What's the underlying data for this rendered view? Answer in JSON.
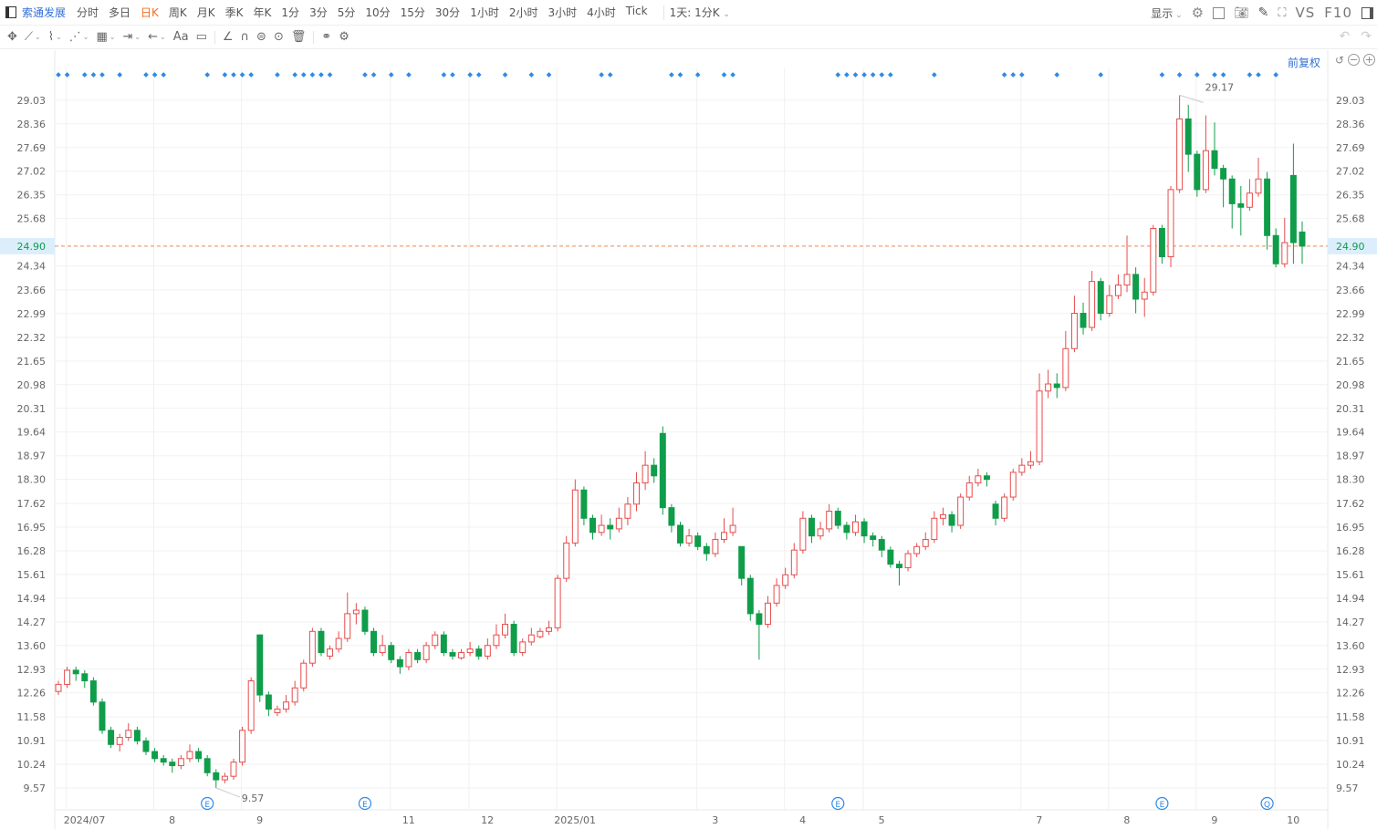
{
  "toolbar": {
    "stock_name": "索通发展",
    "periods": [
      "分时",
      "多日",
      "日K",
      "周K",
      "月K",
      "季K",
      "年K",
      "1分",
      "3分",
      "5分",
      "10分",
      "15分",
      "30分",
      "1小时",
      "2小时",
      "3小时",
      "4小时",
      "Tick"
    ],
    "active_period": "日K",
    "range_select": "1天: 1分K",
    "display_label": "显示",
    "vs_label": "VS",
    "f10_label": "F10",
    "drawing_tools": [
      "move-icon",
      "line-icon",
      "polyline-icon",
      "wave-icon",
      "fib-icon",
      "measure-icon",
      "arrow-icon",
      "text-icon",
      "comment-icon",
      "angle-icon",
      "magnet-icon",
      "eye-icon",
      "target-icon",
      "trash-icon",
      "link-icon",
      "settings-icon"
    ],
    "text_tool_label": "Aa"
  },
  "adjust_label": "前复权",
  "colors": {
    "up": "#e74c4c",
    "down": "#0f9d4a",
    "accent": "#2f6fd6",
    "current_line": "#f0884c",
    "marker": "#2f8ae6"
  },
  "chart_data": {
    "type": "candlestick",
    "ohlc_order": [
      "open",
      "high",
      "low",
      "close"
    ],
    "candles": [
      [
        12.3,
        12.6,
        12.2,
        12.5
      ],
      [
        12.5,
        13.0,
        12.4,
        12.9
      ],
      [
        12.9,
        13.0,
        12.6,
        12.8
      ],
      [
        12.8,
        12.9,
        12.4,
        12.6
      ],
      [
        12.6,
        12.7,
        11.9,
        12.0
      ],
      [
        12.0,
        12.1,
        11.1,
        11.2
      ],
      [
        11.2,
        11.3,
        10.7,
        10.8
      ],
      [
        10.8,
        11.1,
        10.6,
        11.0
      ],
      [
        11.0,
        11.4,
        10.9,
        11.2
      ],
      [
        11.2,
        11.3,
        10.8,
        10.9
      ],
      [
        10.9,
        11.0,
        10.5,
        10.6
      ],
      [
        10.6,
        10.7,
        10.3,
        10.4
      ],
      [
        10.4,
        10.5,
        10.2,
        10.3
      ],
      [
        10.3,
        10.4,
        10.0,
        10.2
      ],
      [
        10.2,
        10.5,
        10.1,
        10.4
      ],
      [
        10.4,
        10.8,
        10.3,
        10.6
      ],
      [
        10.6,
        10.7,
        10.3,
        10.4
      ],
      [
        10.4,
        10.5,
        9.9,
        10.0
      ],
      [
        10.0,
        10.1,
        9.57,
        9.8
      ],
      [
        9.8,
        10.0,
        9.7,
        9.9
      ],
      [
        9.9,
        10.4,
        9.8,
        10.3
      ],
      [
        10.3,
        11.3,
        10.2,
        11.2
      ],
      [
        11.2,
        12.7,
        11.1,
        12.6
      ],
      [
        13.9,
        13.9,
        12.0,
        12.2
      ],
      [
        12.2,
        12.3,
        11.6,
        11.8
      ],
      [
        11.7,
        11.9,
        11.6,
        11.8
      ],
      [
        11.8,
        12.2,
        11.7,
        12.0
      ],
      [
        12.0,
        12.6,
        11.9,
        12.4
      ],
      [
        12.4,
        13.2,
        12.3,
        13.1
      ],
      [
        13.1,
        14.1,
        13.0,
        14.0
      ],
      [
        14.0,
        14.1,
        13.3,
        13.4
      ],
      [
        13.3,
        13.6,
        13.2,
        13.5
      ],
      [
        13.5,
        14.0,
        13.4,
        13.8
      ],
      [
        13.8,
        15.1,
        13.7,
        14.5
      ],
      [
        14.5,
        14.8,
        14.2,
        14.6
      ],
      [
        14.6,
        14.7,
        13.9,
        14.0
      ],
      [
        14.0,
        14.1,
        13.3,
        13.4
      ],
      [
        13.4,
        13.9,
        13.3,
        13.6
      ],
      [
        13.6,
        13.7,
        13.1,
        13.2
      ],
      [
        13.2,
        13.3,
        12.8,
        13.0
      ],
      [
        13.0,
        13.5,
        12.9,
        13.4
      ],
      [
        13.4,
        13.5,
        13.1,
        13.2
      ],
      [
        13.2,
        13.7,
        13.1,
        13.6
      ],
      [
        13.6,
        14.0,
        13.5,
        13.9
      ],
      [
        13.9,
        14.0,
        13.3,
        13.4
      ],
      [
        13.4,
        13.5,
        13.2,
        13.3
      ],
      [
        13.25,
        13.5,
        13.2,
        13.4
      ],
      [
        13.4,
        13.7,
        13.3,
        13.5
      ],
      [
        13.5,
        13.6,
        13.2,
        13.3
      ],
      [
        13.3,
        13.8,
        13.2,
        13.6
      ],
      [
        13.6,
        14.2,
        13.5,
        13.9
      ],
      [
        13.9,
        14.5,
        13.8,
        14.2
      ],
      [
        14.2,
        14.3,
        13.3,
        13.4
      ],
      [
        13.4,
        13.8,
        13.3,
        13.7
      ],
      [
        13.7,
        14.1,
        13.6,
        13.9
      ],
      [
        13.85,
        14.1,
        13.8,
        14.0
      ],
      [
        14.0,
        14.3,
        13.9,
        14.1
      ],
      [
        14.1,
        15.6,
        14.0,
        15.5
      ],
      [
        15.5,
        16.7,
        15.4,
        16.5
      ],
      [
        16.5,
        18.3,
        16.4,
        18.0
      ],
      [
        18.0,
        18.1,
        17.0,
        17.2
      ],
      [
        17.2,
        17.3,
        16.6,
        16.8
      ],
      [
        16.8,
        17.3,
        16.7,
        17.0
      ],
      [
        17.0,
        17.2,
        16.6,
        16.9
      ],
      [
        16.9,
        17.5,
        16.8,
        17.2
      ],
      [
        17.2,
        17.8,
        17.0,
        17.6
      ],
      [
        17.6,
        18.5,
        17.4,
        18.2
      ],
      [
        18.2,
        19.1,
        18.0,
        18.7
      ],
      [
        18.7,
        18.9,
        18.2,
        18.4
      ],
      [
        19.6,
        19.8,
        17.3,
        17.5
      ],
      [
        17.5,
        17.6,
        16.8,
        17.0
      ],
      [
        17.0,
        17.1,
        16.4,
        16.5
      ],
      [
        16.5,
        16.9,
        16.4,
        16.7
      ],
      [
        16.7,
        16.8,
        16.3,
        16.4
      ],
      [
        16.4,
        16.5,
        16.0,
        16.2
      ],
      [
        16.2,
        16.8,
        16.1,
        16.6
      ],
      [
        16.6,
        17.2,
        16.5,
        16.8
      ],
      [
        16.8,
        17.5,
        16.7,
        17.0
      ],
      [
        16.4,
        16.4,
        15.3,
        15.5
      ],
      [
        15.5,
        15.6,
        14.3,
        14.5
      ],
      [
        14.5,
        14.6,
        13.2,
        14.2
      ],
      [
        14.2,
        15.0,
        14.1,
        14.8
      ],
      [
        14.8,
        15.5,
        14.7,
        15.3
      ],
      [
        15.3,
        15.8,
        15.2,
        15.6
      ],
      [
        15.6,
        16.5,
        15.5,
        16.3
      ],
      [
        16.3,
        17.4,
        16.2,
        17.2
      ],
      [
        17.2,
        17.3,
        16.5,
        16.7
      ],
      [
        16.7,
        17.1,
        16.6,
        16.9
      ],
      [
        16.9,
        17.6,
        16.8,
        17.4
      ],
      [
        17.4,
        17.5,
        16.9,
        17.0
      ],
      [
        17.0,
        17.1,
        16.6,
        16.8
      ],
      [
        16.8,
        17.3,
        16.7,
        17.1
      ],
      [
        17.1,
        17.2,
        16.5,
        16.7
      ],
      [
        16.7,
        16.8,
        16.4,
        16.6
      ],
      [
        16.6,
        16.7,
        16.1,
        16.3
      ],
      [
        16.3,
        16.4,
        15.8,
        15.9
      ],
      [
        15.9,
        16.0,
        15.3,
        15.8
      ],
      [
        15.8,
        16.3,
        15.7,
        16.2
      ],
      [
        16.2,
        16.5,
        16.1,
        16.4
      ],
      [
        16.4,
        16.8,
        16.3,
        16.6
      ],
      [
        16.6,
        17.4,
        16.5,
        17.2
      ],
      [
        17.2,
        17.5,
        17.0,
        17.3
      ],
      [
        17.3,
        17.4,
        16.8,
        17.0
      ],
      [
        17.0,
        17.9,
        16.9,
        17.8
      ],
      [
        17.8,
        18.4,
        17.7,
        18.2
      ],
      [
        18.2,
        18.6,
        18.1,
        18.4
      ],
      [
        18.4,
        18.5,
        18.1,
        18.3
      ],
      [
        17.6,
        17.7,
        17.0,
        17.2
      ],
      [
        17.2,
        17.9,
        17.1,
        17.8
      ],
      [
        17.8,
        18.6,
        17.7,
        18.5
      ],
      [
        18.5,
        18.9,
        18.4,
        18.7
      ],
      [
        18.7,
        19.1,
        18.6,
        18.8
      ],
      [
        18.8,
        21.3,
        18.7,
        20.8
      ],
      [
        20.8,
        21.4,
        20.6,
        21.0
      ],
      [
        21.0,
        21.3,
        20.6,
        20.9
      ],
      [
        20.9,
        22.5,
        20.8,
        22.0
      ],
      [
        22.0,
        23.5,
        21.9,
        23.0
      ],
      [
        23.0,
        23.3,
        22.4,
        22.6
      ],
      [
        22.6,
        24.2,
        22.5,
        23.9
      ],
      [
        23.9,
        24.0,
        22.8,
        23.0
      ],
      [
        23.0,
        23.8,
        22.9,
        23.5
      ],
      [
        23.5,
        24.1,
        23.4,
        23.8
      ],
      [
        23.8,
        25.2,
        23.6,
        24.1
      ],
      [
        24.1,
        24.3,
        23.0,
        23.4
      ],
      [
        23.4,
        24.0,
        22.9,
        23.6
      ],
      [
        23.6,
        25.5,
        23.5,
        25.4
      ],
      [
        25.4,
        25.5,
        24.4,
        24.6
      ],
      [
        24.6,
        26.6,
        24.3,
        26.5
      ],
      [
        26.5,
        29.17,
        26.4,
        28.5
      ],
      [
        28.5,
        28.9,
        27.0,
        27.5
      ],
      [
        27.5,
        27.6,
        26.3,
        26.5
      ],
      [
        26.5,
        28.6,
        26.4,
        27.6
      ],
      [
        27.6,
        28.4,
        26.9,
        27.1
      ],
      [
        27.1,
        27.2,
        26.0,
        26.8
      ],
      [
        26.8,
        26.9,
        25.4,
        26.1
      ],
      [
        26.1,
        26.6,
        25.2,
        26.0
      ],
      [
        26.0,
        26.8,
        25.9,
        26.4
      ],
      [
        26.4,
        27.4,
        26.3,
        26.8
      ],
      [
        26.8,
        27.0,
        24.8,
        25.2
      ],
      [
        25.2,
        25.4,
        24.3,
        24.4
      ],
      [
        24.4,
        25.7,
        24.3,
        25.0
      ],
      [
        26.9,
        27.8,
        24.4,
        25.0
      ],
      [
        25.3,
        25.6,
        24.4,
        24.9
      ]
    ],
    "ylim": [
      8.95,
      29.8
    ],
    "y_ticks": [
      "29.03",
      "28.36",
      "27.69",
      "27.02",
      "26.35",
      "25.68",
      "24.34",
      "23.66",
      "22.99",
      "22.32",
      "21.65",
      "20.98",
      "20.31",
      "19.64",
      "18.97",
      "18.30",
      "17.62",
      "16.95",
      "16.28",
      "15.61",
      "14.94",
      "14.27",
      "13.60",
      "12.93",
      "12.26",
      "11.58",
      "10.91",
      "10.24",
      "9.57"
    ],
    "current_price": "24.90",
    "x_ticks": [
      {
        "label": "2024/07",
        "index": 1
      },
      {
        "label": "8",
        "index": 11
      },
      {
        "label": "9",
        "index": 21
      },
      {
        "label": "11",
        "index": 38
      },
      {
        "label": "12",
        "index": 47
      },
      {
        "label": "2025/01",
        "index": 57
      },
      {
        "label": "3",
        "index": 73
      },
      {
        "label": "4",
        "index": 83
      },
      {
        "label": "5",
        "index": 92
      },
      {
        "label": "7",
        "index": 110
      },
      {
        "label": "8",
        "index": 120
      },
      {
        "label": "9",
        "index": 130
      },
      {
        "label": "10",
        "index": 139
      }
    ],
    "high_label": {
      "text": "29.17",
      "index": 128
    },
    "low_label": {
      "text": "9.57",
      "index": 18
    },
    "event_markers": [
      0,
      1,
      3,
      4,
      5,
      7,
      10,
      11,
      12,
      17,
      19,
      20,
      21,
      22,
      25,
      27,
      28,
      29,
      30,
      31,
      35,
      36,
      38,
      40,
      44,
      45,
      47,
      48,
      51,
      54,
      56,
      62,
      63,
      70,
      71,
      73,
      76,
      77,
      89,
      90,
      91,
      92,
      93,
      94,
      95,
      100,
      108,
      109,
      110,
      114,
      119,
      126,
      128,
      130,
      132,
      133,
      136,
      137,
      139
    ],
    "bottom_markers": [
      {
        "label": "E",
        "index": 17
      },
      {
        "label": "E",
        "index": 35
      },
      {
        "label": "E",
        "index": 89
      },
      {
        "label": "E",
        "index": 126
      },
      {
        "label": "Q",
        "index": 138
      }
    ]
  }
}
